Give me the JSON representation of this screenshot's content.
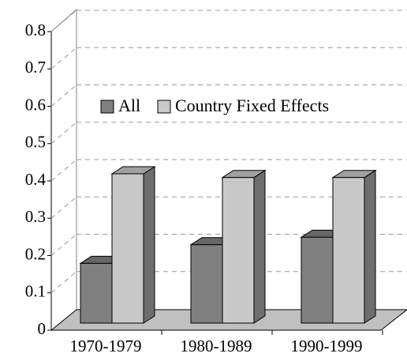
{
  "chart_data": {
    "type": "bar3d",
    "categories": [
      "1970-1979",
      "1980-1989",
      "1990-1999"
    ],
    "series": [
      {
        "name": "All",
        "color": "#808080",
        "values": [
          0.16,
          0.21,
          0.23
        ]
      },
      {
        "name": "Country Fixed Effects",
        "color": "#c8c8c8",
        "values": [
          0.4,
          0.39,
          0.39
        ]
      }
    ],
    "ylim": [
      0,
      0.8
    ],
    "yticks": [
      0,
      0.1,
      0.2,
      0.3,
      0.4,
      0.5,
      0.6,
      0.7,
      0.8
    ],
    "grid": true
  }
}
